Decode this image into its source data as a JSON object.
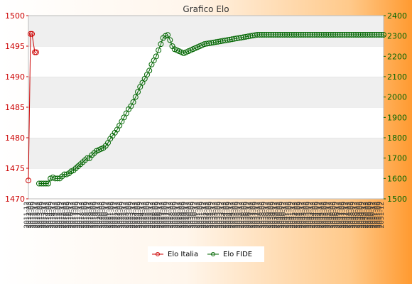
{
  "chart_data": {
    "type": "line",
    "title": "Grafico Elo",
    "x_tick_labels": [
      "2011-12",
      "2012-03",
      "2012-06",
      "2012-09",
      "2012-12",
      "2013-03",
      "2013-06",
      "2013-09",
      "2013-12",
      "2014-03",
      "2014-06",
      "2014-09",
      "2014-12",
      "2015-03",
      "2015-06",
      "2015-09",
      "2015-12",
      "2016-03",
      "2016-06",
      "2016-09",
      "2016-12",
      "2017-03",
      "2017-06",
      "2017-09",
      "2017-12",
      "2018-03",
      "2018-06",
      "2018-09",
      "2018-12",
      "2019-03",
      "2019-06",
      "2019-09",
      "2019-12",
      "2020-03",
      "2020-06",
      "2020-09",
      "2020-12",
      "2021-03",
      "2021-06",
      "2021-09",
      "2021-12",
      "2022-03",
      "2022-06",
      "2022-09",
      "2022-12",
      "2023-03",
      "2023-06",
      "2023-09",
      "2023-12",
      "2024-03",
      "2024-06",
      "2024-09",
      "2024-12",
      "2025-03",
      "2025-06",
      "2025-09",
      "2025-12",
      "2026-03",
      "2026-06",
      "2026-09",
      "2026-12",
      "2027-03",
      "2027-06",
      "2027-09",
      "2027-12",
      "2028-03",
      "2028-06",
      "2028-09",
      "2028-12",
      "2029-03",
      "2029-06",
      "2029-09",
      "2029-12",
      "2030-03",
      "2030-06",
      "2030-09",
      "2030-12",
      "2031-03",
      "2031-06",
      "2031-09",
      "2031-12",
      "2032-03",
      "2032-06",
      "2032-09",
      "2032-12",
      "2033-03",
      "2033-06",
      "2033-09",
      "2033-12",
      "2034-03",
      "2034-06",
      "2034-09",
      "2034-12",
      "2035-03",
      "2035-06",
      "2035-09",
      "2035-12",
      "2036-03",
      "2036-06",
      "2036-09",
      "2036-12",
      "2037-03",
      "2037-06",
      "2037-09",
      "2037-12",
      "2038-03",
      "2038-06",
      "2038-09",
      "2038-12",
      "2039-03",
      "2039-06",
      "2039-09",
      "2039-12",
      "2040-03",
      "2040-06",
      "2040-09",
      "2040-12",
      "2041-03",
      "2041-06",
      "2041-09",
      "2041-12",
      "2042-03",
      "2042-06",
      "2042-09",
      "2042-12",
      "2043-03",
      "2043-06",
      "2043-09",
      "2043-12",
      "2044-03",
      "2044-06",
      "2044-09",
      "2044-12",
      "2045-03",
      "2045-06",
      "2045-09",
      "2045-12",
      "2046-03",
      "2046-06",
      "2046-09",
      "2046-12",
      "2047-03",
      "2047-06",
      "2047-09",
      "2047-12",
      "2048-03",
      "2048-06",
      "2048-09",
      "2048-12",
      "2049-03",
      "2049-06",
      "2049-09",
      "2049-12",
      "2050-03",
      "2050-06",
      "2050-09",
      "2050-12",
      "2051-03",
      "2051-06",
      "2051-09",
      "2051-12"
    ],
    "y_left": {
      "min": 1470,
      "max": 1500,
      "ticks": [
        1470,
        1475,
        1480,
        1485,
        1490,
        1495,
        1500
      ],
      "color": "#cc0000"
    },
    "y_right": {
      "min": 1500,
      "max": 2400,
      "ticks": [
        1500,
        1600,
        1700,
        1800,
        1900,
        2000,
        2100,
        2200,
        2300,
        2400
      ],
      "color": "#006600"
    },
    "grid": "horizontal bands",
    "legend_position": "bottom-center",
    "series": [
      {
        "name": "Elo Italia",
        "axis": "left",
        "color": "#cc0000",
        "values": [
          1473,
          1497,
          1497,
          1494,
          1494
        ]
      },
      {
        "name": "Elo FIDE",
        "axis": "right",
        "color": "#006600",
        "values": [
          1575,
          1575,
          1575,
          1575,
          1575,
          1600,
          1605,
          1600,
          1600,
          1600,
          1610,
          1620,
          1620,
          1625,
          1635,
          1640,
          1650,
          1660,
          1670,
          1680,
          1690,
          1700,
          1700,
          1715,
          1725,
          1735,
          1740,
          1745,
          1750,
          1760,
          1775,
          1795,
          1810,
          1825,
          1840,
          1860,
          1880,
          1900,
          1920,
          1940,
          1955,
          1975,
          2000,
          2025,
          2050,
          2070,
          2090,
          2110,
          2130,
          2160,
          2180,
          2200,
          2230,
          2260,
          2290,
          2300,
          2305,
          2280,
          2250,
          2235,
          2230,
          2225,
          2220,
          2215,
          2220,
          2225,
          2230,
          2235,
          2240,
          2245,
          2250,
          2255,
          2260,
          2262,
          2264,
          2266,
          2268,
          2270,
          2272,
          2274,
          2276,
          2278,
          2280,
          2282,
          2284,
          2286,
          2288,
          2290,
          2292,
          2294,
          2296,
          2298,
          2300,
          2302,
          2304,
          2306,
          2306,
          2306,
          2306,
          2306,
          2306,
          2306,
          2306,
          2306,
          2306,
          2306,
          2306,
          2306,
          2306,
          2306,
          2306,
          2306,
          2306,
          2306,
          2306,
          2306,
          2306,
          2306,
          2306,
          2306,
          2306,
          2306,
          2306,
          2306,
          2306,
          2306,
          2306,
          2306,
          2306,
          2306,
          2306,
          2306,
          2306,
          2306,
          2306,
          2306,
          2306,
          2306,
          2306,
          2306,
          2306,
          2306,
          2306,
          2306,
          2306,
          2306,
          2306,
          2306,
          2306,
          2306,
          2306
        ]
      }
    ]
  }
}
